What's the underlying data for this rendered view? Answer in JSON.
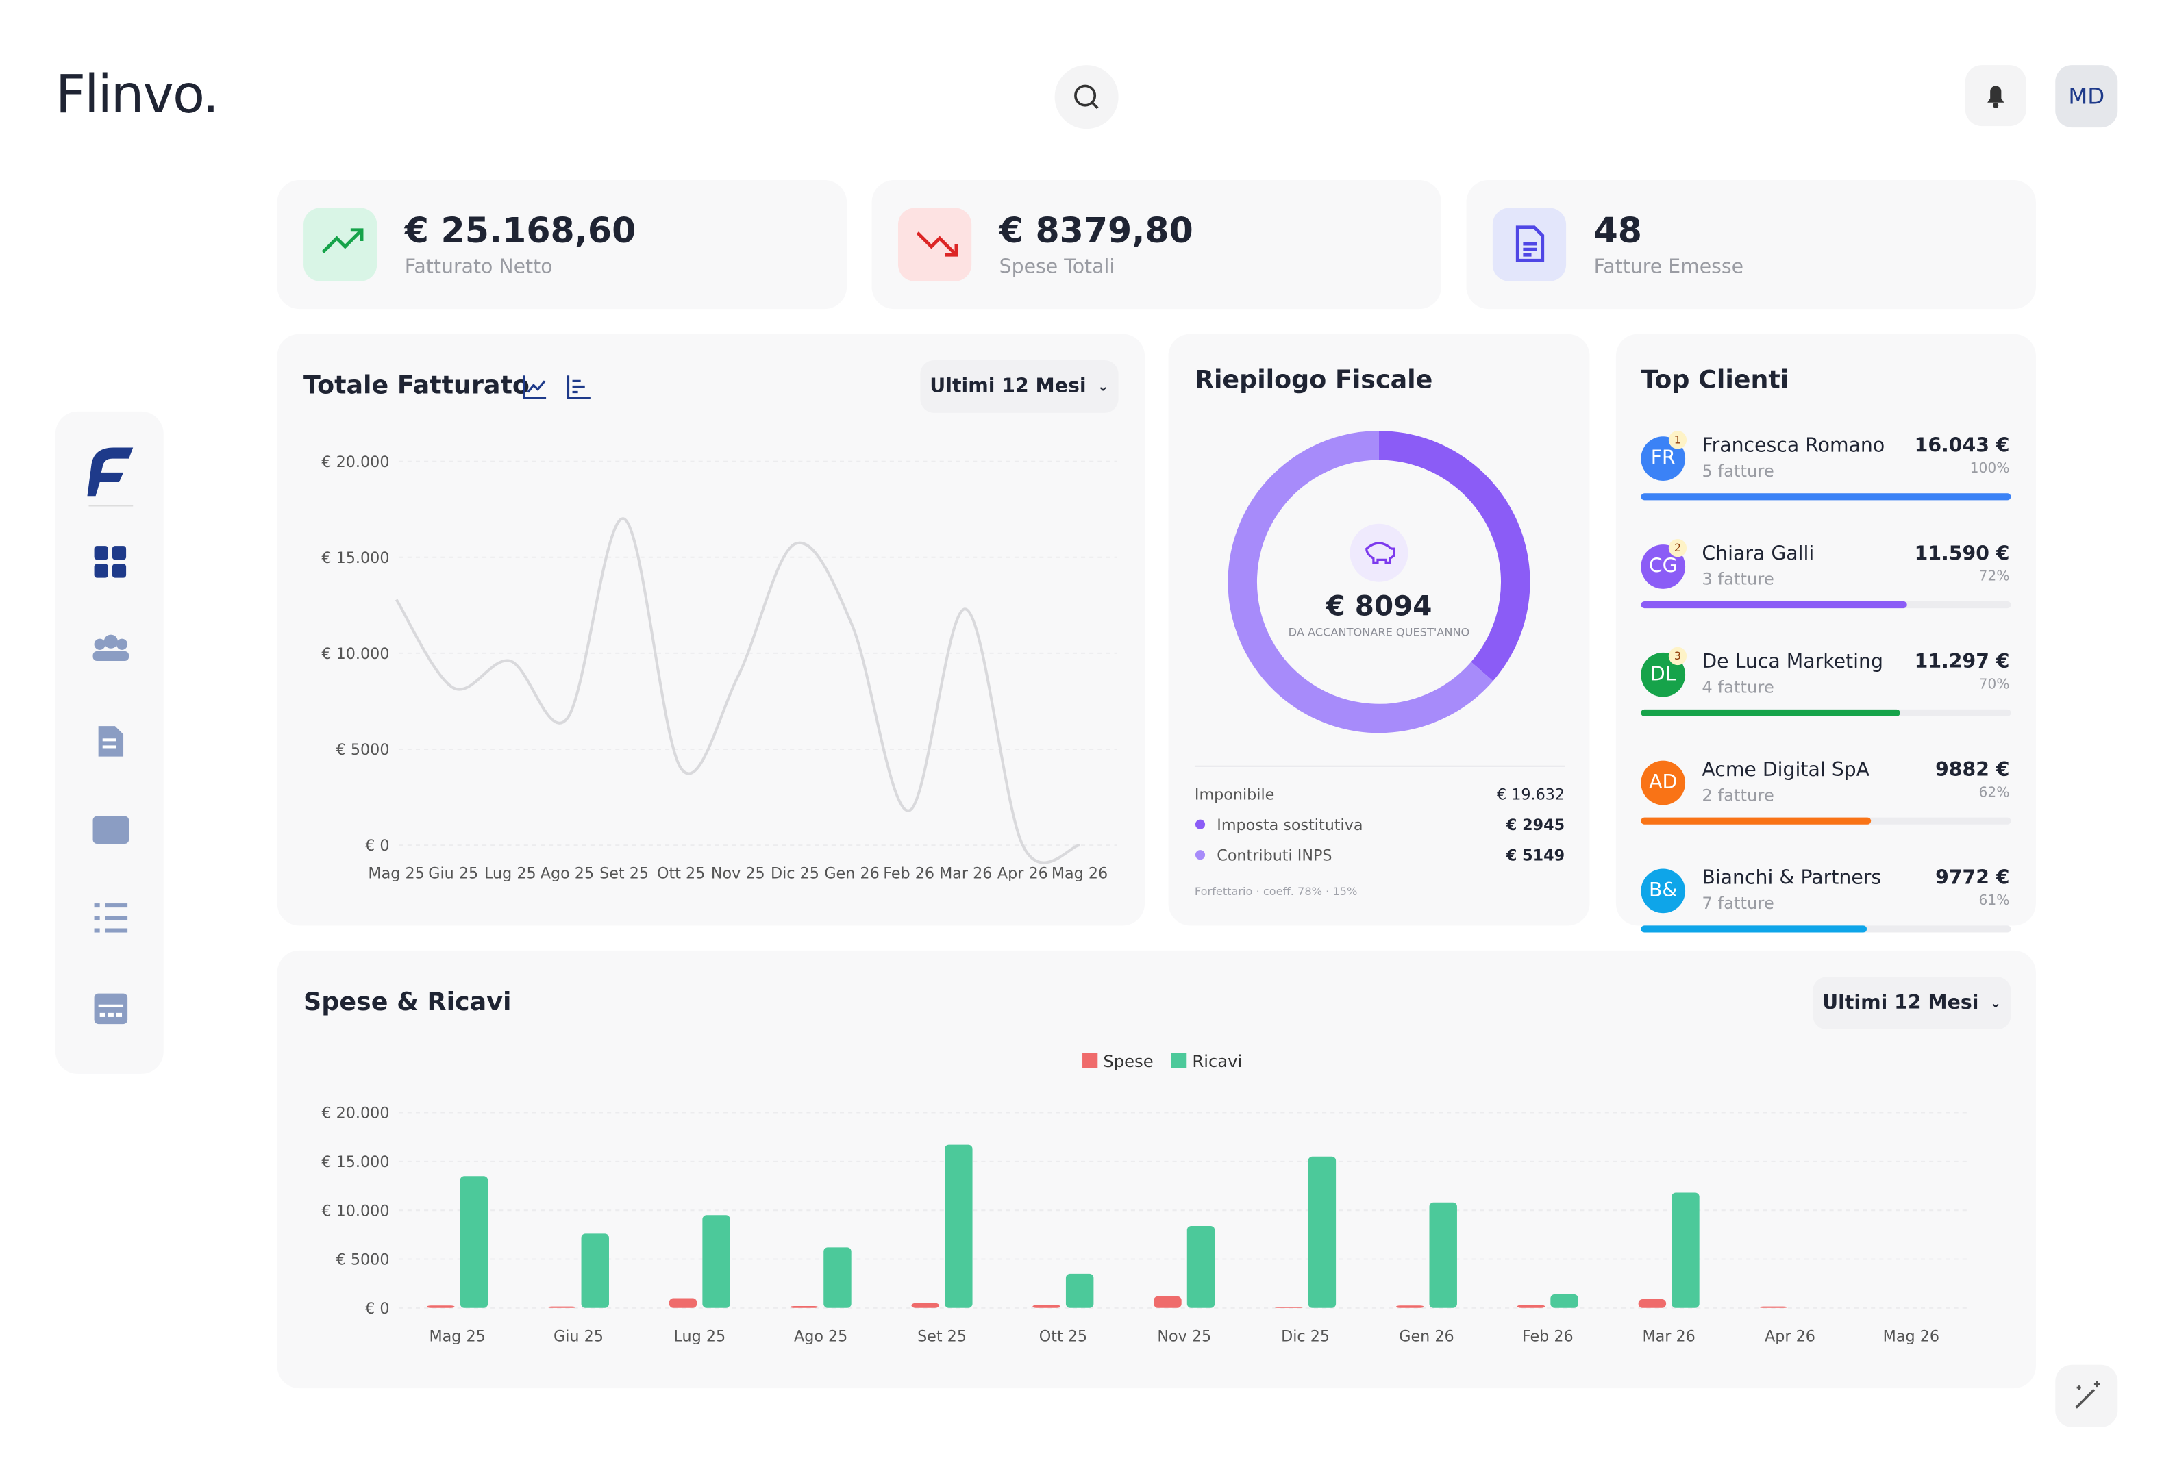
{
  "header": {
    "logo": "Flinvo.",
    "avatar": "MD"
  },
  "stats": [
    {
      "value": "€ 25.168,60",
      "label": "Fatturato Netto"
    },
    {
      "value": "€ 8379,80",
      "label": "Spese Totali"
    },
    {
      "value": "48",
      "label": "Fatture Emesse"
    }
  ],
  "revenue": {
    "type": "line",
    "title": "Totale Fatturato",
    "period": "Ultimi 12 Mesi",
    "color": "#d9d9dc",
    "categories": [
      "Mag 25",
      "Giu 25",
      "Lug 25",
      "Ago 25",
      "Set 25",
      "Ott 25",
      "Nov 25",
      "Dic 25",
      "Gen 26",
      "Feb 26",
      "Mar 26",
      "Apr 26",
      "Mag 26"
    ],
    "values": [
      12800,
      8200,
      9600,
      6600,
      17000,
      4000,
      8800,
      15700,
      11500,
      1800,
      12300,
      0,
      0
    ],
    "ylim": [
      0,
      20000
    ],
    "yticks": [
      {
        "value": 0,
        "label": "€ 0"
      },
      {
        "value": 5000,
        "label": "€ 5000"
      },
      {
        "value": 10000,
        "label": "€ 10.000"
      },
      {
        "value": 15000,
        "label": "€ 15.000"
      },
      {
        "value": 20000,
        "label": "€ 20.000"
      }
    ],
    "grid": true
  },
  "fiscal": {
    "title": "Riepilogo Fiscale",
    "total": "€ 8094",
    "caption": "DA ACCANTONARE QUEST'ANNO",
    "taxable": {
      "label": "Imponibile",
      "value": "€ 19.632"
    },
    "rows": [
      {
        "label": "Imposta sostitutiva",
        "value": 2945,
        "value_label": "€ 2945",
        "color": "#8b5cf6"
      },
      {
        "label": "Contributi INPS",
        "value": 5149,
        "value_label": "€ 5149",
        "color": "#a78bfa"
      }
    ],
    "note": "Forfettario · coeff. 78% · 15%"
  },
  "clients": {
    "title": "Top Clienti",
    "items": [
      {
        "initials": "FR",
        "rank": "1",
        "name": "Francesca Romano",
        "invoices": "5 fatture",
        "amount": "16.043 €",
        "share": {
          "value": 100,
          "label": "100%"
        },
        "color": "#3b82f6"
      },
      {
        "initials": "CG",
        "rank": "2",
        "name": "Chiara Galli",
        "invoices": "3 fatture",
        "amount": "11.590 €",
        "share": {
          "value": 72,
          "label": "72%"
        },
        "color": "#8b5cf6"
      },
      {
        "initials": "DL",
        "rank": "3",
        "name": "De Luca Marketing",
        "invoices": "4 fatture",
        "amount": "11.297 €",
        "share": {
          "value": 70,
          "label": "70%"
        },
        "color": "#16a34a"
      },
      {
        "initials": "AD",
        "name": "Acme Digital SpA",
        "invoices": "2 fatture",
        "amount": "9882 €",
        "share": {
          "value": 62,
          "label": "62%"
        },
        "color": "#f97316"
      },
      {
        "initials": "B&",
        "name": "Bianchi & Partners",
        "invoices": "7 fatture",
        "amount": "9772 €",
        "share": {
          "value": 61,
          "label": "61%"
        },
        "color": "#0ea5e9"
      }
    ]
  },
  "cashflow": {
    "type": "bar",
    "title": "Spese & Ricavi",
    "period": "Ultimi 12 Mesi",
    "categories": [
      "Mag 25",
      "Giu 25",
      "Lug 25",
      "Ago 25",
      "Set 25",
      "Ott 25",
      "Nov 25",
      "Dic 25",
      "Gen 26",
      "Feb 26",
      "Mar 26",
      "Apr 26",
      "Mag 26"
    ],
    "series": [
      {
        "name": "Spese",
        "color": "#ef6b6b",
        "values": [
          250,
          150,
          1000,
          200,
          500,
          300,
          1200,
          100,
          250,
          300,
          900,
          150,
          0
        ]
      },
      {
        "name": "Ricavi",
        "color": "#4cc99a",
        "values": [
          13500,
          7600,
          9500,
          6200,
          16700,
          3500,
          8400,
          15500,
          10800,
          1400,
          11800,
          0,
          0
        ]
      }
    ],
    "ylim": [
      0,
      20000
    ],
    "yticks": [
      {
        "value": 0,
        "label": "€ 0"
      },
      {
        "value": 5000,
        "label": "€ 5000"
      },
      {
        "value": 10000,
        "label": "€ 10.000"
      },
      {
        "value": 15000,
        "label": "€ 15.000"
      },
      {
        "value": 20000,
        "label": "€ 20.000"
      }
    ],
    "grid": true
  }
}
